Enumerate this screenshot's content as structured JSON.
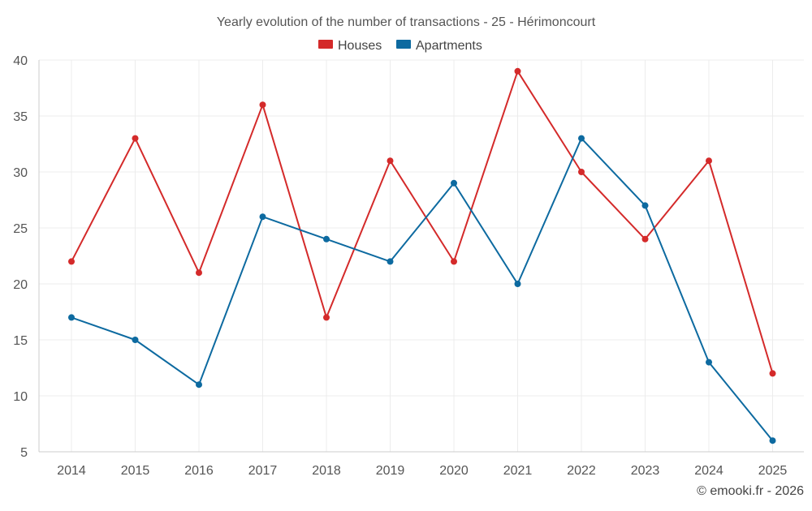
{
  "chart_data": {
    "type": "line",
    "title": "Yearly evolution of the number of transactions - 25 - Hérimoncourt",
    "xlabel": "",
    "ylabel": "",
    "categories": [
      "2014",
      "2015",
      "2016",
      "2017",
      "2018",
      "2019",
      "2020",
      "2021",
      "2022",
      "2023",
      "2024",
      "2025"
    ],
    "y_ticks": [
      "5",
      "10",
      "15",
      "20",
      "25",
      "30",
      "35",
      "40"
    ],
    "ylim": [
      5,
      40
    ],
    "grid": true,
    "legend_position": "top-center",
    "series": [
      {
        "name": "Houses",
        "color": "#d42a2a",
        "values": [
          22,
          33,
          21,
          36,
          17,
          31,
          22,
          39,
          30,
          24,
          31,
          12
        ]
      },
      {
        "name": "Apartments",
        "color": "#0d6aa0",
        "values": [
          17,
          15,
          11,
          26,
          24,
          22,
          29,
          20,
          33,
          27,
          13,
          6
        ]
      }
    ],
    "credit": "© emooki.fr - 2026"
  }
}
